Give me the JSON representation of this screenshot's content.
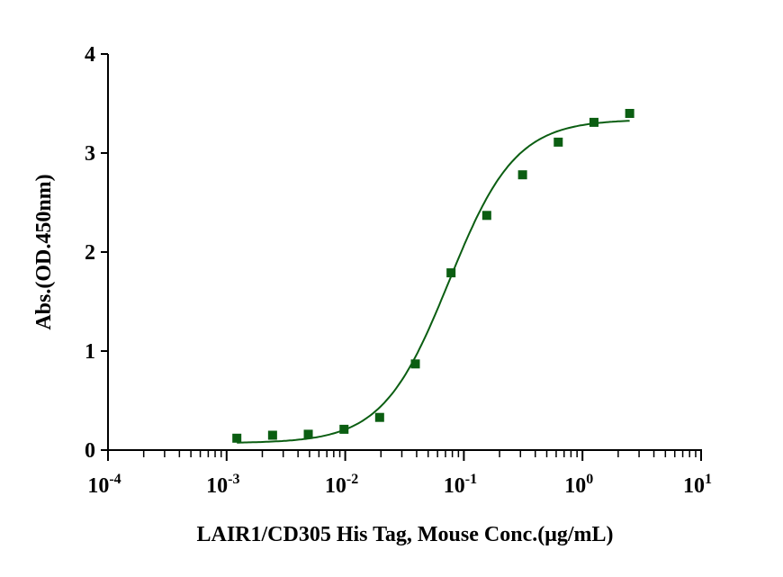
{
  "chart_data": {
    "type": "scatter",
    "title": "",
    "xlabel": "LAIR1/CD305 His Tag, Mouse Conc.(μg/mL)",
    "ylabel": "Abs.(OD.450nm)",
    "xscale": "log",
    "xlim": [
      0.0001,
      10
    ],
    "ylim": [
      0,
      4
    ],
    "grid": false,
    "x_ticks": [
      {
        "base": "10",
        "exp": "-4"
      },
      {
        "base": "10",
        "exp": "-3"
      },
      {
        "base": "10",
        "exp": "-2"
      },
      {
        "base": "10",
        "exp": "-1"
      },
      {
        "base": "10",
        "exp": "0"
      },
      {
        "base": "10",
        "exp": "1"
      }
    ],
    "y_ticks": [
      "0",
      "1",
      "2",
      "3",
      "4"
    ],
    "series": [
      {
        "name": "LAIR1/CD305 His Tag, Mouse",
        "color": "#0b5e12",
        "marker": "square",
        "x": [
          0.00122,
          0.00244,
          0.00488,
          0.00977,
          0.0195,
          0.039,
          0.078,
          0.156,
          0.3125,
          0.625,
          1.25,
          2.5
        ],
        "y": [
          0.12,
          0.15,
          0.16,
          0.21,
          0.33,
          0.87,
          1.79,
          2.37,
          2.78,
          3.11,
          3.31,
          3.4
        ]
      }
    ],
    "fit": {
      "model": "4PL",
      "bottom": 0.07,
      "top": 3.34,
      "ec50": 0.075,
      "hill": 1.55,
      "color": "#0b5e12"
    }
  }
}
